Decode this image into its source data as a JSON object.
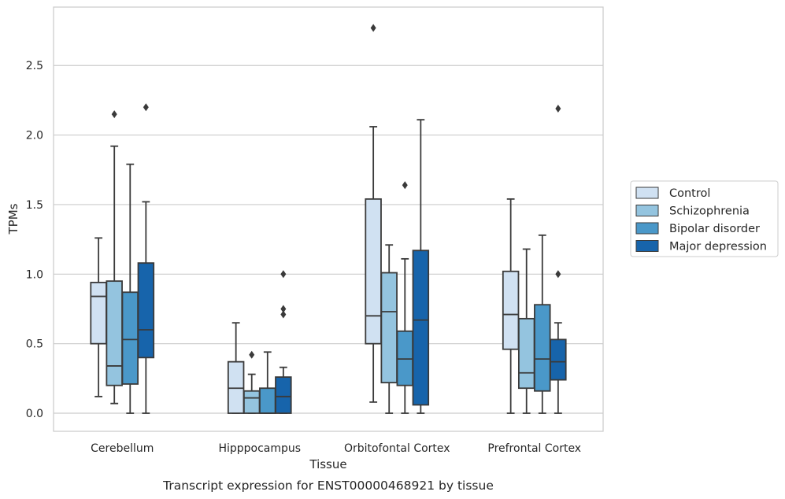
{
  "chart_data": {
    "type": "box",
    "xlabel": "Tissue",
    "ylabel": "TPMs",
    "caption": "Transcript expression for ENST00000468921 by tissue",
    "ylim": [
      -0.13,
      2.92
    ],
    "yticks": [
      "0.0",
      "0.5",
      "1.0",
      "1.5",
      "2.0",
      "2.5"
    ],
    "ytick_values": [
      0.0,
      0.5,
      1.0,
      1.5,
      2.0,
      2.5
    ],
    "grid": "horizontal",
    "legend_position": "right",
    "categories": [
      "Cerebellum",
      "Hipppocampus",
      "Orbitofontal Cortex",
      "Prefrontal Cortex"
    ],
    "series": [
      {
        "name": "Control",
        "color": "#d0e1f2",
        "boxes": [
          {
            "q1": 0.5,
            "median": 0.84,
            "q3": 0.94,
            "whisker_low": 0.12,
            "whisker_high": 1.26,
            "outliers": []
          },
          {
            "q1": 0.0,
            "median": 0.18,
            "q3": 0.37,
            "whisker_low": 0.0,
            "whisker_high": 0.65,
            "outliers": []
          },
          {
            "q1": 0.5,
            "median": 0.7,
            "q3": 1.54,
            "whisker_low": 0.08,
            "whisker_high": 2.06,
            "outliers": [
              2.77
            ]
          },
          {
            "q1": 0.46,
            "median": 0.71,
            "q3": 1.02,
            "whisker_low": 0.0,
            "whisker_high": 1.54,
            "outliers": []
          }
        ]
      },
      {
        "name": "Schizophrenia",
        "color": "#94c4df",
        "boxes": [
          {
            "q1": 0.2,
            "median": 0.34,
            "q3": 0.95,
            "whisker_low": 0.07,
            "whisker_high": 1.92,
            "outliers": [
              2.15
            ]
          },
          {
            "q1": 0.0,
            "median": 0.11,
            "q3": 0.16,
            "whisker_low": 0.0,
            "whisker_high": 0.28,
            "outliers": [
              0.42
            ]
          },
          {
            "q1": 0.22,
            "median": 0.73,
            "q3": 1.01,
            "whisker_low": 0.0,
            "whisker_high": 1.21,
            "outliers": []
          },
          {
            "q1": 0.18,
            "median": 0.29,
            "q3": 0.68,
            "whisker_low": 0.0,
            "whisker_high": 1.18,
            "outliers": []
          }
        ]
      },
      {
        "name": "Bipolar disorder",
        "color": "#4a98c9",
        "boxes": [
          {
            "q1": 0.21,
            "median": 0.53,
            "q3": 0.87,
            "whisker_low": 0.0,
            "whisker_high": 1.79,
            "outliers": []
          },
          {
            "q1": 0.0,
            "median": 0.0,
            "q3": 0.18,
            "whisker_low": 0.0,
            "whisker_high": 0.44,
            "outliers": []
          },
          {
            "q1": 0.2,
            "median": 0.39,
            "q3": 0.59,
            "whisker_low": 0.0,
            "whisker_high": 1.11,
            "outliers": [
              1.64
            ]
          },
          {
            "q1": 0.16,
            "median": 0.39,
            "q3": 0.78,
            "whisker_low": 0.0,
            "whisker_high": 1.28,
            "outliers": []
          }
        ]
      },
      {
        "name": "Major depression",
        "color": "#1764ab",
        "boxes": [
          {
            "q1": 0.4,
            "median": 0.6,
            "q3": 1.08,
            "whisker_low": 0.0,
            "whisker_high": 1.52,
            "outliers": [
              2.2
            ]
          },
          {
            "q1": 0.0,
            "median": 0.12,
            "q3": 0.26,
            "whisker_low": 0.0,
            "whisker_high": 0.33,
            "outliers": [
              1.0,
              0.75,
              0.71
            ]
          },
          {
            "q1": 0.06,
            "median": 0.67,
            "q3": 1.17,
            "whisker_low": 0.0,
            "whisker_high": 2.11,
            "outliers": []
          },
          {
            "q1": 0.24,
            "median": 0.37,
            "q3": 0.53,
            "whisker_low": 0.0,
            "whisker_high": 0.65,
            "outliers": [
              1.0,
              2.19
            ]
          }
        ]
      }
    ]
  }
}
